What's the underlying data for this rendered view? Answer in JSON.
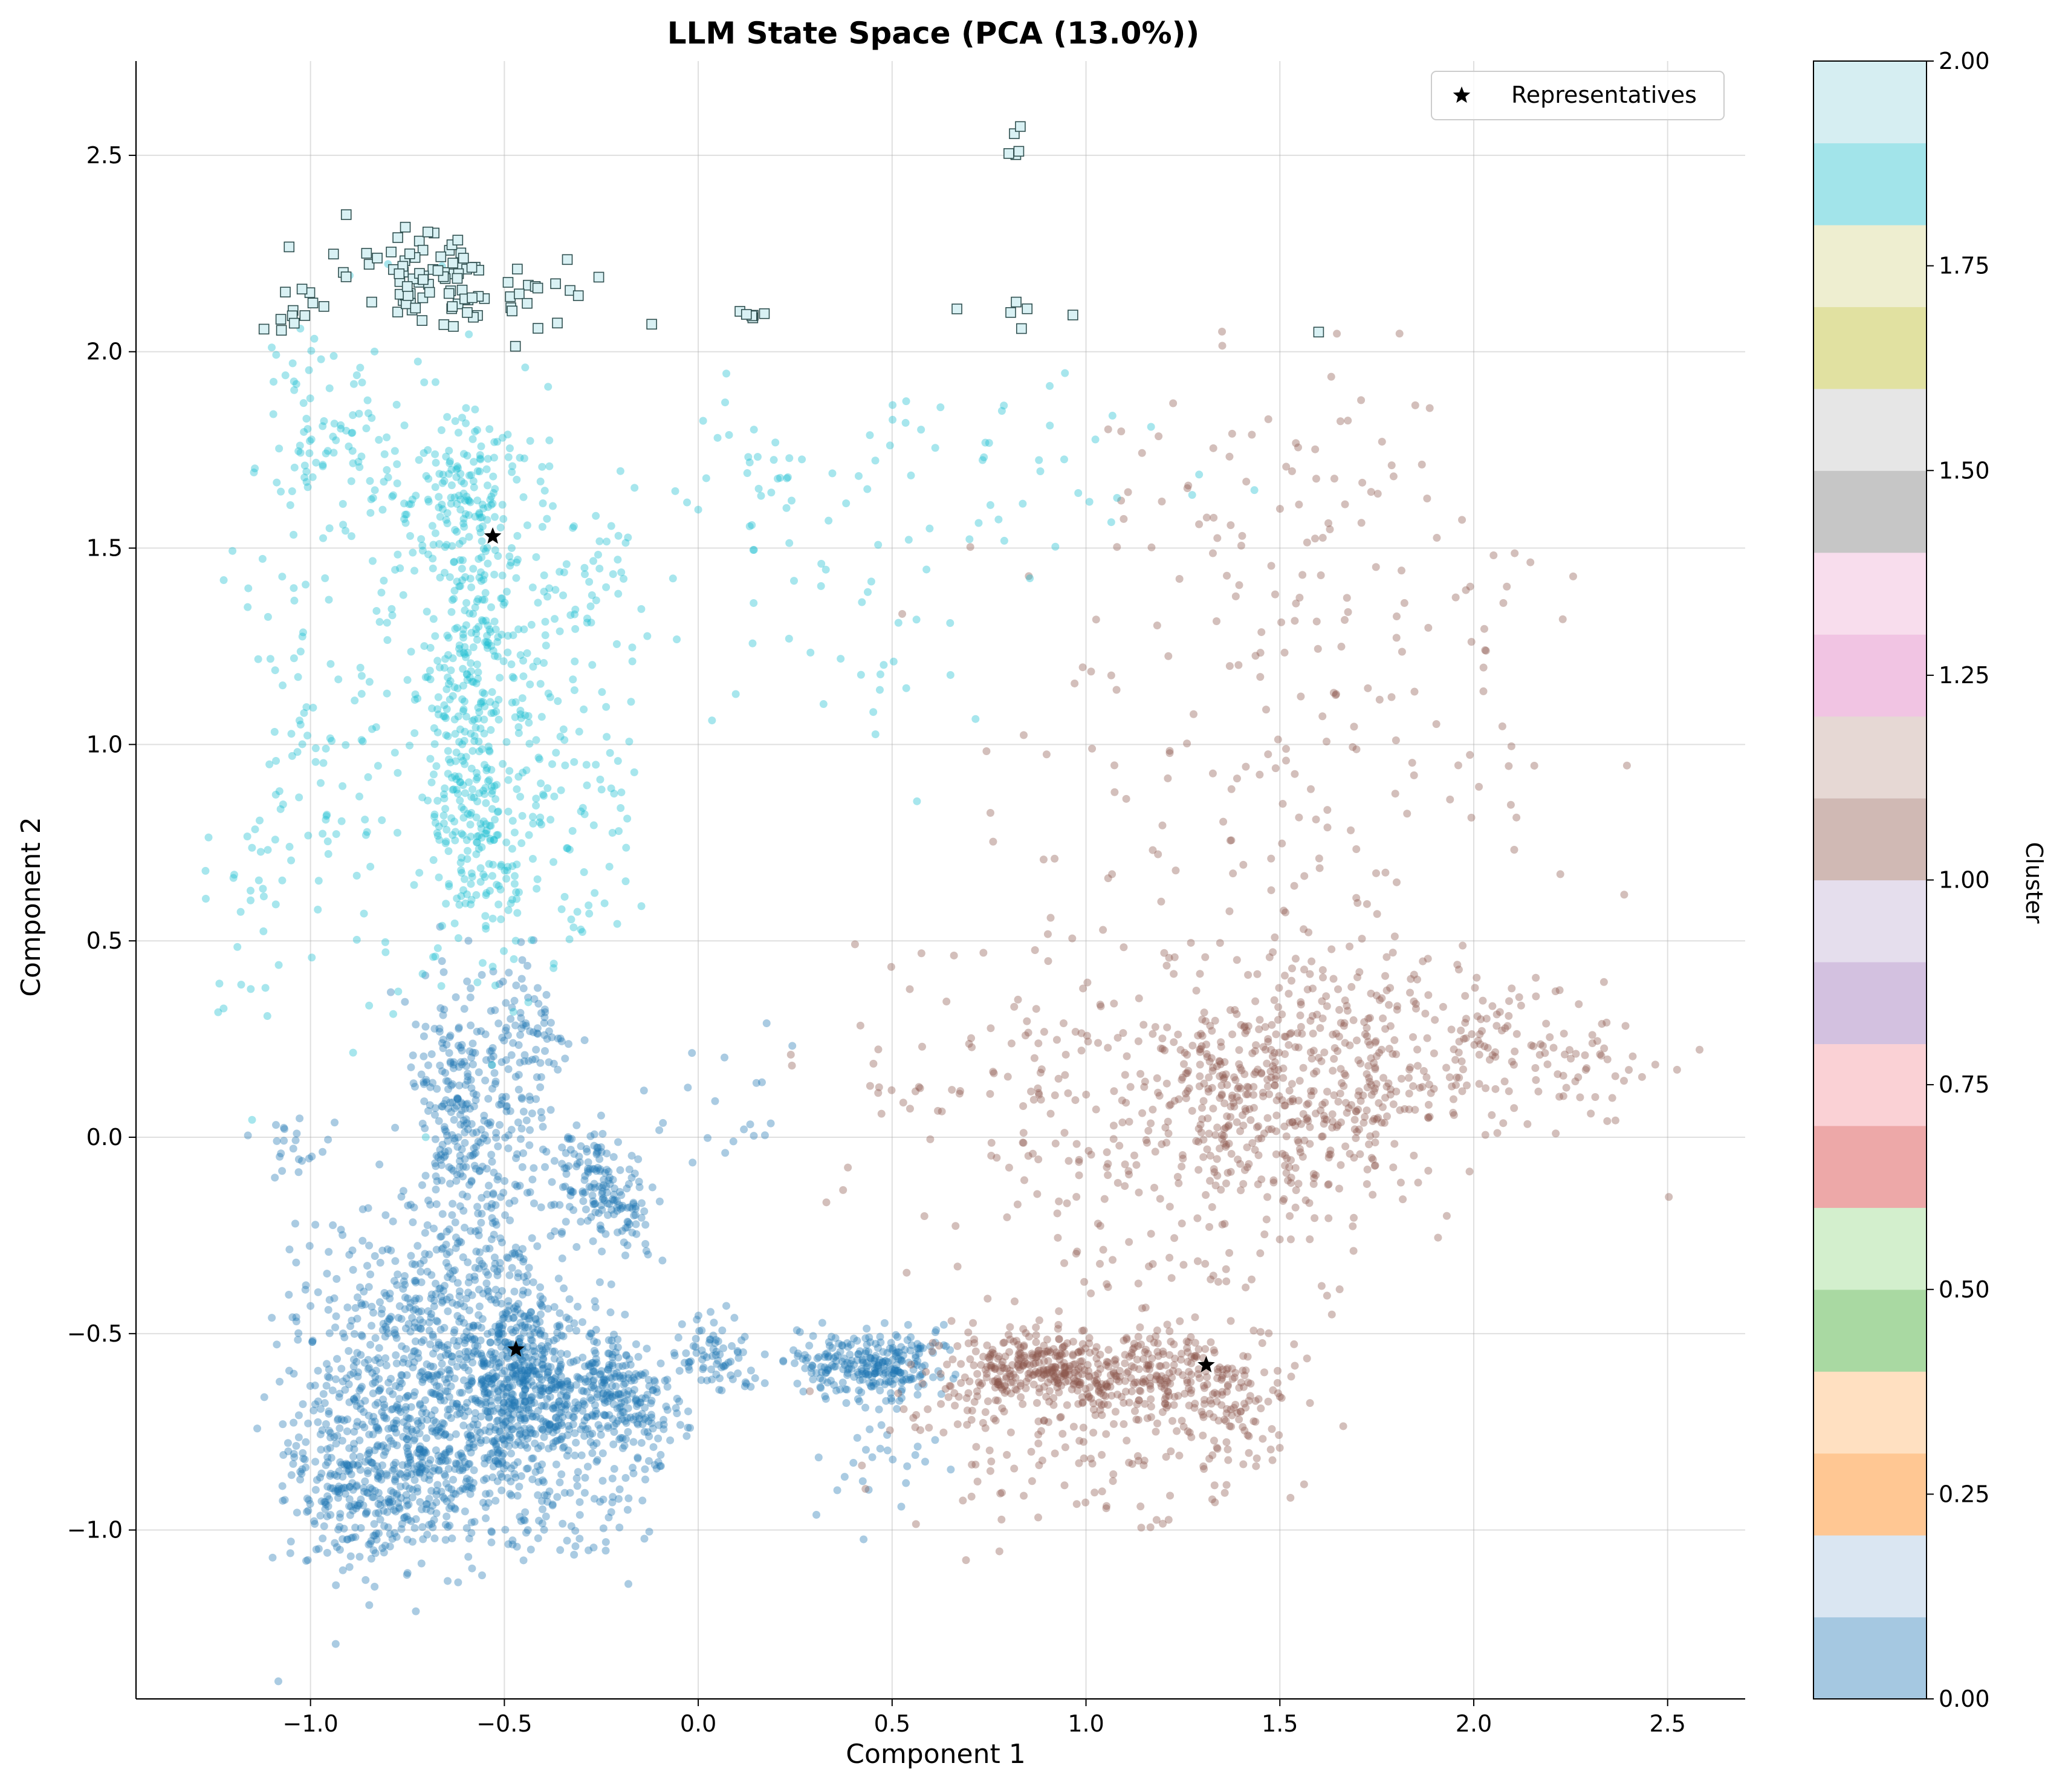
{
  "chart_data": {
    "type": "scatter",
    "title": "LLM State Space (PCA (13.0%))",
    "xlabel": "Component 1",
    "ylabel": "Component 2",
    "xlim": [
      -1.45,
      2.7
    ],
    "ylim": [
      -1.43,
      2.74
    ],
    "x_ticks": [
      -1.0,
      -0.5,
      0.0,
      0.5,
      1.0,
      1.5,
      2.0,
      2.5
    ],
    "x_tick_labels": [
      "−1.0",
      "−0.5",
      "0.0",
      "0.5",
      "1.0",
      "1.5",
      "2.0",
      "2.5"
    ],
    "y_ticks": [
      -1.0,
      -0.5,
      0.0,
      0.5,
      1.0,
      1.5,
      2.0,
      2.5
    ],
    "y_tick_labels": [
      "−1.0",
      "−0.5",
      "0.0",
      "0.5",
      "1.0",
      "1.5",
      "2.0",
      "2.5"
    ],
    "grid": true,
    "legend": {
      "placement": "top-right",
      "entries": [
        {
          "label": "Representatives",
          "marker": "star",
          "color": "#000000"
        }
      ]
    },
    "colorbar": {
      "label": "Cluster",
      "range": [
        0.0,
        2.0
      ],
      "ticks": [
        0.0,
        0.25,
        0.5,
        0.75,
        1.0,
        1.25,
        1.5,
        1.75,
        2.0
      ],
      "tick_labels": [
        "0.00",
        "0.25",
        "0.50",
        "0.75",
        "1.00",
        "1.25",
        "1.50",
        "1.75",
        "2.00"
      ],
      "colormap": [
        "#a5c8e1",
        "#dae6f2",
        "#ffc793",
        "#ffe0c1",
        "#a9d9a2",
        "#d3efcd",
        "#eda8a8",
        "#fad1d5",
        "#d3c1e0",
        "#e5deed",
        "#d0b9b4",
        "#e6d8d4",
        "#f1c4e3",
        "#f8dded",
        "#c6c6c6",
        "#e6e6e6",
        "#e1e1a1",
        "#eeeed0",
        "#a2e4ea",
        "#d6eef2"
      ]
    },
    "series": [
      {
        "cluster": 0,
        "color": "#1f77b4",
        "marker": "circle",
        "clusters": [
          {
            "cx": -0.45,
            "cy": -0.62,
            "sx": 0.09,
            "sy": 0.12,
            "n": 560
          },
          {
            "cx": -0.7,
            "cy": -0.78,
            "sx": 0.14,
            "sy": 0.13,
            "n": 520
          },
          {
            "cx": -0.85,
            "cy": -0.9,
            "sx": 0.1,
            "sy": 0.1,
            "n": 160
          },
          {
            "cx": -0.72,
            "cy": -0.45,
            "sx": 0.12,
            "sy": 0.1,
            "n": 180
          },
          {
            "cx": -0.55,
            "cy": -0.3,
            "sx": 0.12,
            "sy": 0.18,
            "n": 220
          },
          {
            "cx": -0.63,
            "cy": 0.1,
            "sx": 0.06,
            "sy": 0.17,
            "n": 200
          },
          {
            "cx": -0.45,
            "cy": 0.18,
            "sx": 0.06,
            "sy": 0.15,
            "n": 120
          },
          {
            "cx": -0.3,
            "cy": -0.1,
            "sx": 0.05,
            "sy": 0.06,
            "n": 90
          },
          {
            "cx": -0.2,
            "cy": -0.18,
            "sx": 0.05,
            "sy": 0.06,
            "n": 80
          },
          {
            "cx": -0.22,
            "cy": -0.65,
            "sx": 0.06,
            "sy": 0.07,
            "n": 200
          },
          {
            "cx": -0.13,
            "cy": -0.74,
            "sx": 0.05,
            "sy": 0.06,
            "n": 60
          },
          {
            "cx": 0.03,
            "cy": -0.55,
            "sx": 0.06,
            "sy": 0.05,
            "n": 80
          },
          {
            "cx": 0.35,
            "cy": -0.57,
            "sx": 0.05,
            "sy": 0.04,
            "n": 70
          },
          {
            "cx": 0.48,
            "cy": -0.58,
            "sx": 0.07,
            "sy": 0.05,
            "n": 200
          },
          {
            "cx": -0.95,
            "cy": -0.65,
            "sx": 0.08,
            "sy": 0.25,
            "n": 130
          },
          {
            "cx": -1.05,
            "cy": -0.02,
            "sx": 0.04,
            "sy": 0.05,
            "n": 20
          },
          {
            "cx": -0.35,
            "cy": -0.95,
            "sx": 0.12,
            "sy": 0.08,
            "n": 80
          },
          {
            "cx": 0.05,
            "cy": 0.05,
            "sx": 0.1,
            "sy": 0.08,
            "n": 20
          },
          {
            "cx": 0.45,
            "cy": -0.85,
            "sx": 0.08,
            "sy": 0.08,
            "n": 25
          }
        ]
      },
      {
        "cluster": 1,
        "color": "#8c564b",
        "marker": "circle",
        "clusters": [
          {
            "cx": 0.85,
            "cy": -0.58,
            "sx": 0.07,
            "sy": 0.04,
            "n": 170
          },
          {
            "cx": 1.1,
            "cy": -0.6,
            "sx": 0.13,
            "sy": 0.05,
            "n": 230
          },
          {
            "cx": 1.35,
            "cy": -0.65,
            "sx": 0.1,
            "sy": 0.07,
            "n": 130
          },
          {
            "cx": 1.0,
            "cy": -0.75,
            "sx": 0.25,
            "sy": 0.12,
            "n": 150
          },
          {
            "cx": 0.7,
            "cy": -0.6,
            "sx": 0.08,
            "sy": 0.08,
            "n": 60
          },
          {
            "cx": 1.4,
            "cy": 0.05,
            "sx": 0.1,
            "sy": 0.1,
            "n": 140
          },
          {
            "cx": 1.65,
            "cy": 0.05,
            "sx": 0.12,
            "sy": 0.12,
            "n": 130
          },
          {
            "cx": 1.5,
            "cy": 0.25,
            "sx": 0.2,
            "sy": 0.15,
            "n": 150
          },
          {
            "cx": 1.8,
            "cy": 0.2,
            "sx": 0.15,
            "sy": 0.12,
            "n": 120
          },
          {
            "cx": 1.2,
            "cy": 0.2,
            "sx": 0.2,
            "sy": 0.15,
            "n": 80
          },
          {
            "cx": 2.05,
            "cy": 0.25,
            "sx": 0.12,
            "sy": 0.1,
            "n": 70
          },
          {
            "cx": 2.35,
            "cy": 0.2,
            "sx": 0.1,
            "sy": 0.08,
            "n": 35
          },
          {
            "cx": 1.0,
            "cy": 0.0,
            "sx": 0.2,
            "sy": 0.2,
            "n": 80
          },
          {
            "cx": 1.3,
            "cy": -0.3,
            "sx": 0.25,
            "sy": 0.15,
            "n": 70
          },
          {
            "cx": 1.4,
            "cy": 0.9,
            "sx": 0.35,
            "sy": 0.4,
            "n": 120
          },
          {
            "cx": 1.6,
            "cy": 1.6,
            "sx": 0.3,
            "sy": 0.2,
            "n": 70
          },
          {
            "cx": 1.8,
            "cy": 1.0,
            "sx": 0.25,
            "sy": 0.3,
            "n": 50
          },
          {
            "cx": 0.6,
            "cy": 0.15,
            "sx": 0.2,
            "sy": 0.2,
            "n": 40
          }
        ]
      },
      {
        "cluster": 2,
        "color": "#17becf",
        "marker": "circle",
        "clusters": [
          {
            "cx": -0.6,
            "cy": 1.15,
            "sx": 0.05,
            "sy": 0.3,
            "n": 260
          },
          {
            "cx": -0.55,
            "cy": 0.75,
            "sx": 0.06,
            "sy": 0.12,
            "n": 110
          },
          {
            "cx": -0.6,
            "cy": 1.65,
            "sx": 0.12,
            "sy": 0.1,
            "n": 110
          },
          {
            "cx": -0.45,
            "cy": 1.1,
            "sx": 0.1,
            "sy": 0.35,
            "n": 140
          },
          {
            "cx": -0.8,
            "cy": 1.2,
            "sx": 0.15,
            "sy": 0.45,
            "n": 140
          },
          {
            "cx": -0.95,
            "cy": 1.8,
            "sx": 0.1,
            "sy": 0.12,
            "n": 70
          },
          {
            "cx": -1.05,
            "cy": 1.0,
            "sx": 0.08,
            "sy": 0.3,
            "n": 60
          },
          {
            "cx": -0.3,
            "cy": 0.8,
            "sx": 0.1,
            "sy": 0.2,
            "n": 50
          },
          {
            "cx": -0.3,
            "cy": 1.35,
            "sx": 0.08,
            "sy": 0.1,
            "n": 40
          },
          {
            "cx": 0.15,
            "cy": 1.65,
            "sx": 0.12,
            "sy": 0.15,
            "n": 40
          },
          {
            "cx": 0.7,
            "cy": 1.7,
            "sx": 0.25,
            "sy": 0.15,
            "n": 45
          },
          {
            "cx": 0.45,
            "cy": 1.35,
            "sx": 0.2,
            "sy": 0.2,
            "n": 30
          },
          {
            "cx": -1.15,
            "cy": 0.5,
            "sx": 0.08,
            "sy": 0.15,
            "n": 25
          }
        ]
      },
      {
        "cluster": 2,
        "color": "#d9f1f4",
        "marker": "square",
        "clusters": [
          {
            "cx": -0.65,
            "cy": 2.18,
            "sx": 0.1,
            "sy": 0.06,
            "n": 70
          },
          {
            "cx": -0.85,
            "cy": 2.2,
            "sx": 0.1,
            "sy": 0.05,
            "n": 20
          },
          {
            "cx": -0.4,
            "cy": 2.15,
            "sx": 0.06,
            "sy": 0.06,
            "n": 12
          },
          {
            "cx": -1.05,
            "cy": 2.1,
            "sx": 0.04,
            "sy": 0.03,
            "n": 8
          },
          {
            "cx": 0.15,
            "cy": 2.09,
            "sx": 0.03,
            "sy": 0.01,
            "n": 6
          },
          {
            "cx": 0.8,
            "cy": 2.1,
            "sx": 0.06,
            "sy": 0.02,
            "n": 6
          },
          {
            "cx": 0.81,
            "cy": 2.52,
            "sx": 0.02,
            "sy": 0.03,
            "n": 5
          },
          {
            "cx": -0.12,
            "cy": 2.07,
            "sx": 0.0,
            "sy": 0.0,
            "n": 1
          },
          {
            "cx": 1.6,
            "cy": 2.05,
            "sx": 0.0,
            "sy": 0.0,
            "n": 1
          }
        ]
      }
    ],
    "representatives": [
      {
        "x": -0.53,
        "y": 1.53
      },
      {
        "x": -0.47,
        "y": -0.54
      },
      {
        "x": 1.31,
        "y": -0.58
      }
    ]
  }
}
